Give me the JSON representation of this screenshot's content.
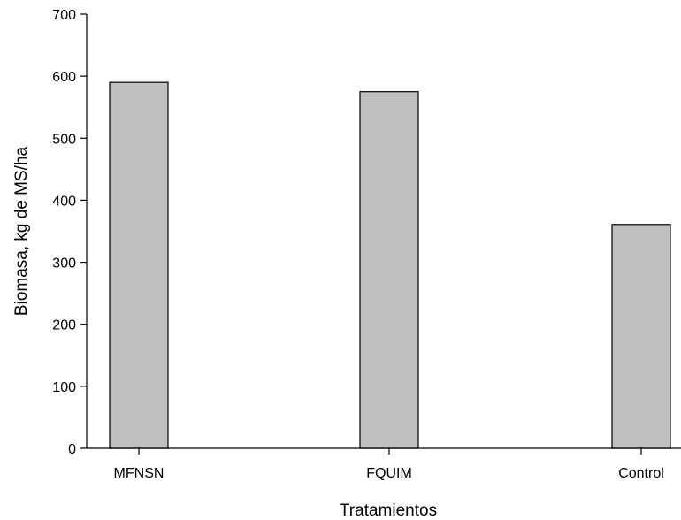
{
  "chart_data": {
    "type": "bar",
    "title": "",
    "xlabel": "Tratamientos",
    "ylabel": "Biomasa, kg de MS/ha",
    "categories": [
      "MFNSN",
      "FQUIM",
      "Control"
    ],
    "values": [
      590,
      575,
      361
    ],
    "ylim": [
      0,
      700
    ],
    "yticks": [
      0,
      100,
      200,
      300,
      400,
      500,
      600,
      700
    ],
    "grid": false,
    "bar_color": "#c0c0c0",
    "bar_edge_color": "#000000"
  }
}
